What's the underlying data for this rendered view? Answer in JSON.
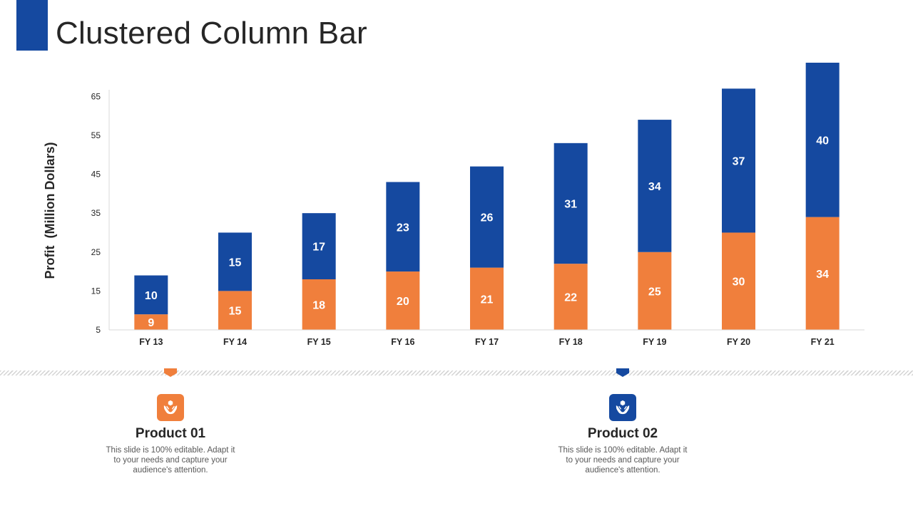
{
  "slide": {
    "title": "Clustered Column Bar"
  },
  "colors": {
    "accent": "#1549a0",
    "series_1": "#f07f3c",
    "series_2": "#1549a0",
    "axis_line": "#d9d9d9",
    "text_dark": "#262626",
    "text_muted": "#595959"
  },
  "chart_data": {
    "type": "bar",
    "stacked": true,
    "title": "",
    "xlabel": "",
    "ylabel": "Profit  (Million Dollars)",
    "ylim": [
      5,
      70
    ],
    "yticks": [
      5,
      15,
      25,
      35,
      45,
      55,
      65
    ],
    "grid": false,
    "legend": "none",
    "categories": [
      "FY 13",
      "FY 14",
      "FY 15",
      "FY 16",
      "FY 17",
      "FY 18",
      "FY 19",
      "FY 20",
      "FY 21"
    ],
    "series": [
      {
        "values": [
          9,
          15,
          18,
          20,
          21,
          22,
          25,
          30,
          34
        ],
        "color": "#f07f3c"
      },
      {
        "values": [
          10,
          15,
          17,
          23,
          26,
          31,
          34,
          37,
          40
        ],
        "color": "#1549a0"
      }
    ]
  },
  "products": [
    {
      "icon": "hands-box-icon",
      "color": "#f07f3c",
      "title": "Product 01",
      "description": "This slide is 100% editable. Adapt it to your needs and capture your audience's attention."
    },
    {
      "icon": "hands-box-icon",
      "color": "#1549a0",
      "title": "Product 02",
      "description": "This slide is 100% editable. Adapt it to your needs and capture your audience's attention."
    }
  ]
}
